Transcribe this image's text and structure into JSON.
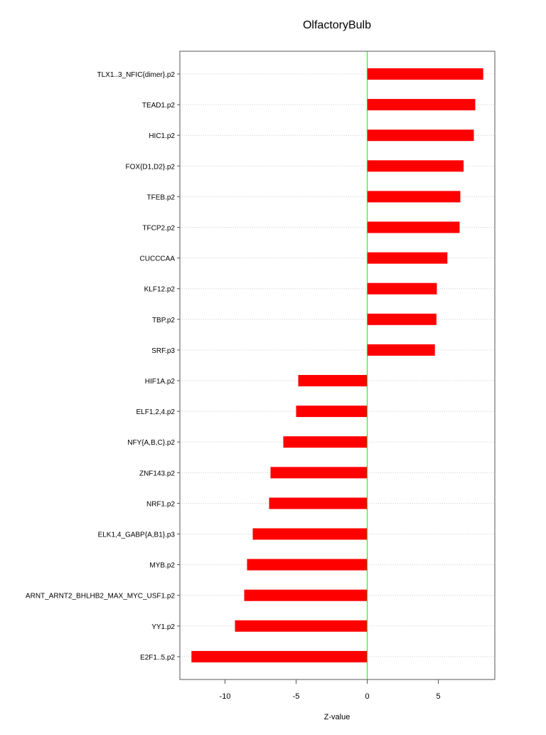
{
  "chart_data": {
    "type": "bar",
    "orientation": "horizontal",
    "title": "OlfactoryBulb",
    "xlabel": "Z-value",
    "ylabel": "",
    "xlim": [
      -13.1,
      9.0
    ],
    "xticks": [
      -10,
      -5,
      0,
      5
    ],
    "xtick_labels": [
      "-10",
      "-5",
      "0",
      "5"
    ],
    "grid": "horizontal dotted",
    "bar_color": "#ff0000",
    "zero_line_color": "#00ff00",
    "categories": [
      "TLX1..3_NFIC{dimer}.p2",
      "TEAD1.p2",
      "HIC1.p2",
      "FOX{D1,D2}.p2",
      "TFEB.p2",
      "TFCP2.p2",
      "CUCCCAA",
      "KLF12.p2",
      "TBP.p2",
      "SRF.p3",
      "HIF1A.p2",
      "ELF1,2,4.p2",
      "NFY{A,B,C}.p2",
      "ZNF143.p2",
      "NRF1.p2",
      "ELK1,4_GABP{A,B1}.p3",
      "MYB.p2",
      "ARNT_ARNT2_BHLHB2_MAX_MYC_USF1.p2",
      "YY1.p2",
      "E2F1..5.p2"
    ],
    "values": [
      8.16,
      7.6,
      7.5,
      6.78,
      6.55,
      6.5,
      5.64,
      4.9,
      4.87,
      4.76,
      -4.85,
      -5.0,
      -5.9,
      -6.8,
      -6.9,
      -8.05,
      -8.45,
      -8.65,
      -9.3,
      -12.36
    ]
  }
}
